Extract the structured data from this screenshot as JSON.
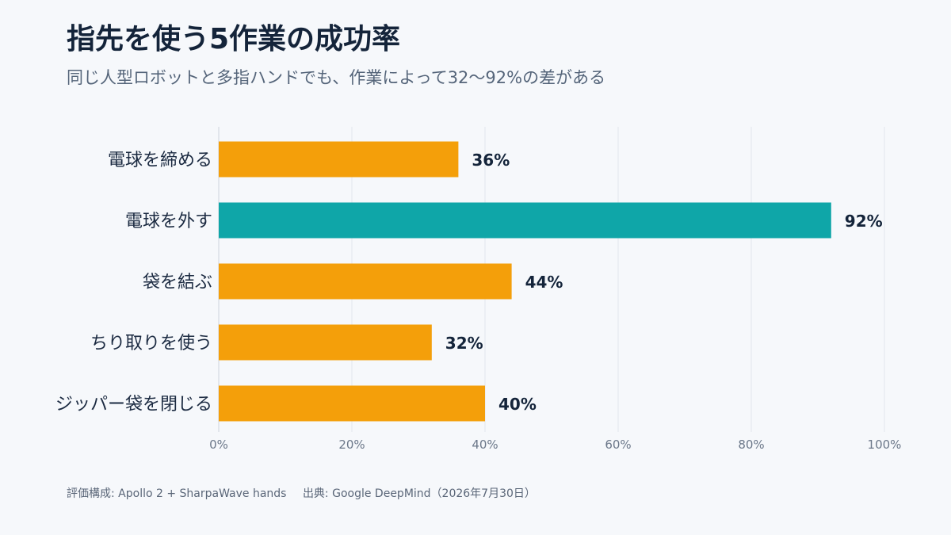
{
  "header": {
    "title": "指先を使う5作業の成功率",
    "subtitle": "同じ人型ロボットと多指ハンドでも、作業によって32〜92%の差がある"
  },
  "chart_data": {
    "type": "bar",
    "orientation": "horizontal",
    "categories": [
      "電球を締める",
      "電球を外す",
      "袋を結ぶ",
      "ちり取りを使う",
      "ジッパー袋を閉じる"
    ],
    "values": [
      36,
      92,
      44,
      32,
      40
    ],
    "value_labels": [
      "36%",
      "92%",
      "44%",
      "32%",
      "40%"
    ],
    "xlim": [
      0,
      100
    ],
    "x_ticks": [
      0,
      20,
      40,
      60,
      80,
      100
    ],
    "x_tick_labels": [
      "0%",
      "20%",
      "40%",
      "60%",
      "80%",
      "100%"
    ],
    "grid": true,
    "highlight_index": 1,
    "colors": {
      "default": "#f49f0a",
      "highlight": "#0fa6a8",
      "grid": "#e2e6ec",
      "axis": "#cfd5dd",
      "tick_label": "#6b7789",
      "category_label": "#1b2a41",
      "value_label": "#14243a"
    }
  },
  "footer": {
    "config": "評価構成: Apollo 2 + SharpaWave hands",
    "source": "出典: Google DeepMind（2026年7月30日）"
  }
}
